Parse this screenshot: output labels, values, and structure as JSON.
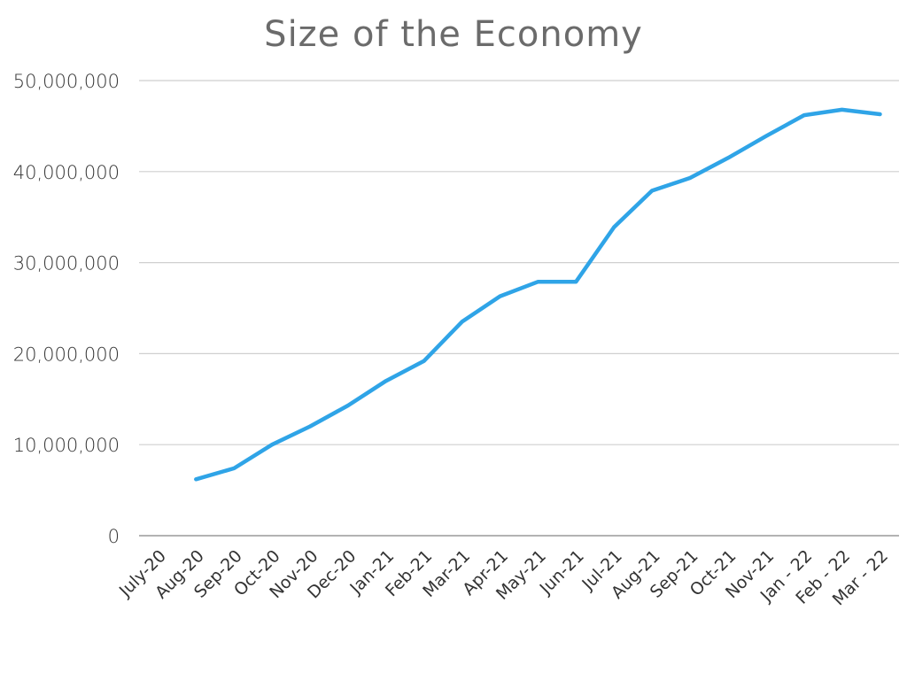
{
  "chart_data": {
    "type": "line",
    "title": "Size of the Economy",
    "xlabel": "",
    "ylabel": "",
    "categories": [
      "July-20",
      "Aug-20",
      "Sep-20",
      "Oct-20",
      "Nov-20",
      "Dec-20",
      "Jan-21",
      "Feb-21",
      "Mar-21",
      "Apr-21",
      "May-21",
      "Jun-21",
      "Jul-21",
      "Aug-21",
      "Sep-21",
      "Oct-21",
      "Nov-21",
      "Jan - 22",
      "Feb - 22",
      "Mar - 22"
    ],
    "y_ticks": [
      "0",
      "10,000,000",
      "20,000,000",
      "30,000,000",
      "40,000,000",
      "50,000,000"
    ],
    "ylim": [
      0,
      50000000
    ],
    "grid": true,
    "legend": "none",
    "series": [
      {
        "color": "#2fa4e7",
        "values": [
          null,
          6200000,
          7400000,
          10000000,
          12000000,
          14300000,
          17000000,
          19200000,
          23500000,
          26300000,
          27900000,
          27900000,
          33900000,
          37900000,
          39300000,
          41500000,
          43900000,
          46200000,
          46800000,
          46300000
        ]
      }
    ]
  }
}
